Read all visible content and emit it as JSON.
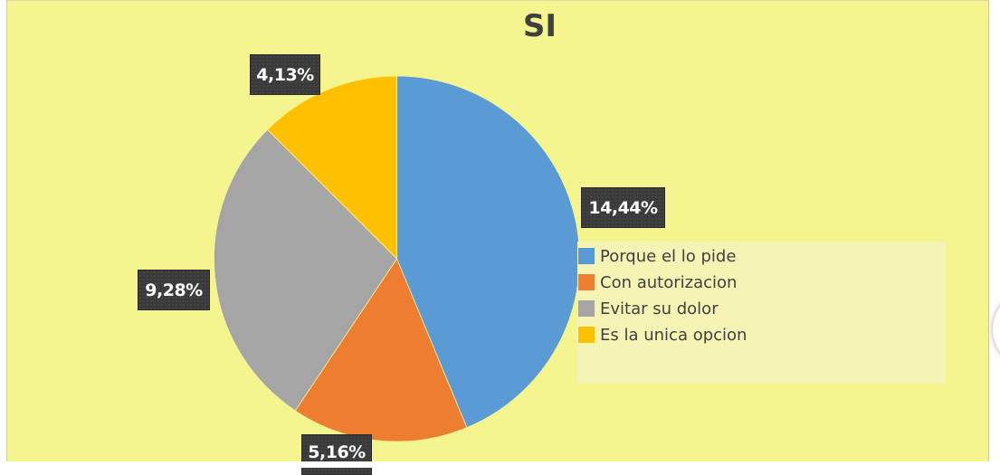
{
  "chart_data": {
    "type": "pie",
    "title": "SI",
    "categories": [
      "Porque el lo pide",
      "Con autorizacion",
      "Evitar su dolor",
      "Es la unica opcion"
    ],
    "values": [
      14.44,
      5.16,
      9.28,
      4.13
    ],
    "data_labels": [
      "14,44%",
      "5,16%",
      "9,28%",
      "4,13%"
    ],
    "colors": [
      "#5b9bd5",
      "#ed7d31",
      "#a5a5a5",
      "#ffc000"
    ],
    "start_angle_deg": 0,
    "direction": "clockwise",
    "legend_position": "right",
    "background": "#f5f58f"
  },
  "chart": {
    "title": "SI",
    "labels": {
      "porque": "14,44%",
      "con": "5,16%",
      "evitar": "9,28%",
      "unica": "4,13%"
    },
    "legend": [
      {
        "label": "Porque el lo pide",
        "color": "#5b9bd5"
      },
      {
        "label": "Con autorizacion",
        "color": "#ed7d31"
      },
      {
        "label": "Evitar su dolor",
        "color": "#a5a5a5"
      },
      {
        "label": "Es la unica opcion",
        "color": "#ffc000"
      }
    ]
  }
}
